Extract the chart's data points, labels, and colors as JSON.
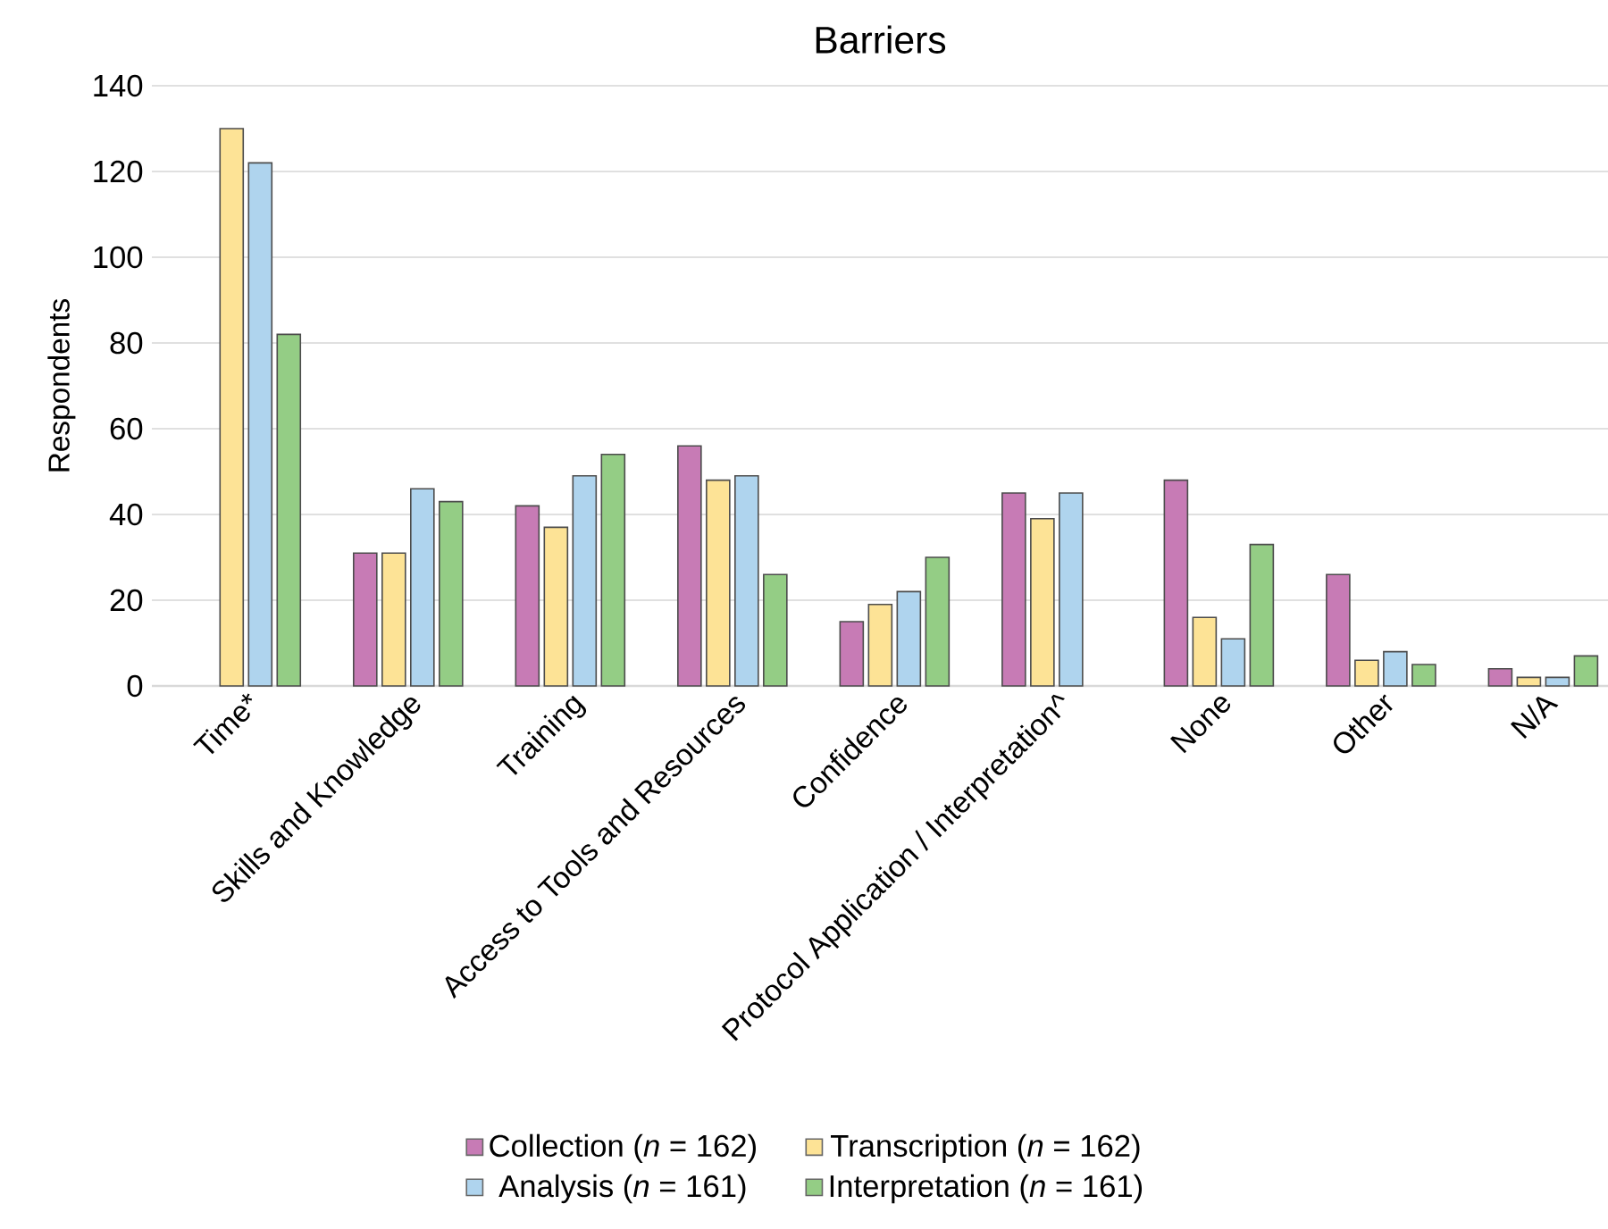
{
  "chart_data": {
    "type": "bar",
    "title": "Barriers",
    "ylabel": "Respondents",
    "categories": [
      "Time*",
      "Skills and Knowledge",
      "Training",
      "Access to Tools and Resources",
      "Confidence",
      "Protocol Application / Interpretation^",
      "None",
      "Other",
      "N/A"
    ],
    "series": [
      {
        "name": "Collection (*n* = 162)",
        "color": "#c77bb5",
        "values": [
          null,
          31,
          42,
          56,
          15,
          45,
          48,
          26,
          4
        ]
      },
      {
        "name": "Transcription (*n* = 162)",
        "color": "#fde396",
        "values": [
          130,
          31,
          37,
          48,
          19,
          39,
          16,
          6,
          2
        ]
      },
      {
        "name": "Analysis (*n* = 161)",
        "color": "#afd4ee",
        "values": [
          122,
          46,
          49,
          49,
          22,
          45,
          11,
          8,
          2
        ]
      },
      {
        "name": "Interpretation (*n* = 161)",
        "color": "#94cd85",
        "values": [
          82,
          43,
          54,
          26,
          30,
          null,
          33,
          5,
          7
        ]
      }
    ],
    "ylim": [
      0,
      140
    ],
    "yticks": [
      0,
      20,
      40,
      60,
      80,
      100,
      120,
      140
    ],
    "grid": "y",
    "legend": "bottom"
  }
}
